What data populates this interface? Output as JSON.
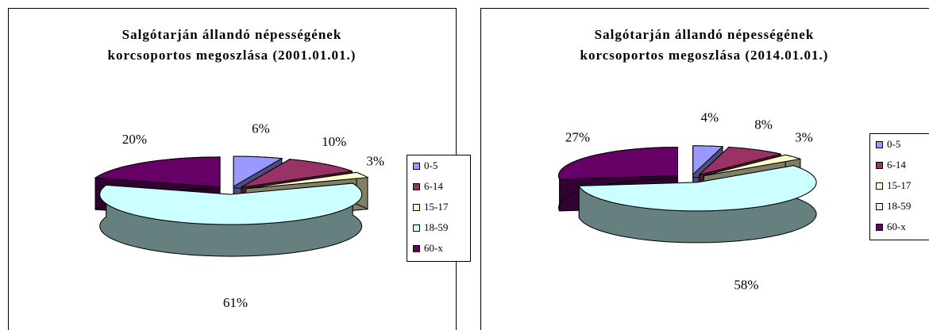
{
  "chart_data": [
    {
      "type": "pie",
      "title": [
        "Salgótarján állandó népességének",
        "korcsoportos megoszlása (2001.01.01.)"
      ],
      "categories": [
        "0-5",
        "6-14",
        "15-17",
        "18-59",
        "60-x"
      ],
      "values": [
        6,
        10,
        3,
        61,
        20
      ],
      "value_labels": [
        "6%",
        "10%",
        "3%",
        "61%",
        "20%"
      ],
      "colors": [
        "#9999ff",
        "#993366",
        "#ffffcc",
        "#ccffff",
        "#660066"
      ],
      "legend": "right",
      "three_d": true
    },
    {
      "type": "pie",
      "title": [
        "Salgótarján állandó népességének",
        "korcsoportos megoszlása (2014.01.01.)"
      ],
      "categories": [
        "0-5",
        "6-14",
        "15-17",
        "18-59",
        "60-x"
      ],
      "values": [
        4,
        8,
        3,
        58,
        27
      ],
      "value_labels": [
        "4%",
        "8%",
        "3%",
        "58%",
        "27%"
      ],
      "colors": [
        "#9999ff",
        "#993366",
        "#ffffcc",
        "#ccffff",
        "#660066"
      ],
      "legend": "right",
      "three_d": true
    }
  ]
}
